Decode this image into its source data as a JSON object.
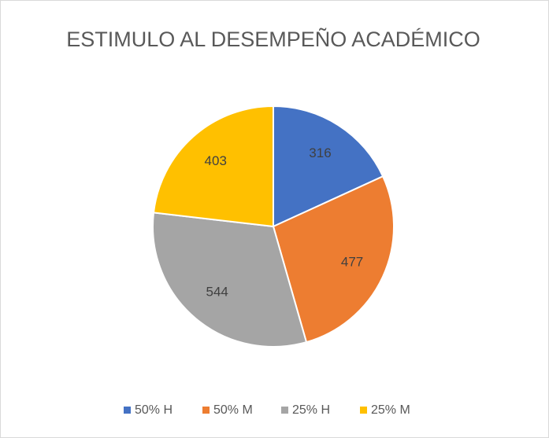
{
  "chart_data": {
    "type": "pie",
    "title": "ESTIMULO AL DESEMPEÑO ACADÉMICO",
    "categories": [
      "50% H",
      "50% M",
      "25% H",
      "25% M"
    ],
    "values": [
      316,
      477,
      544,
      403
    ],
    "colors": [
      "#4472c4",
      "#ed7d31",
      "#a5a5a5",
      "#ffc000"
    ],
    "legend": "bottom"
  }
}
